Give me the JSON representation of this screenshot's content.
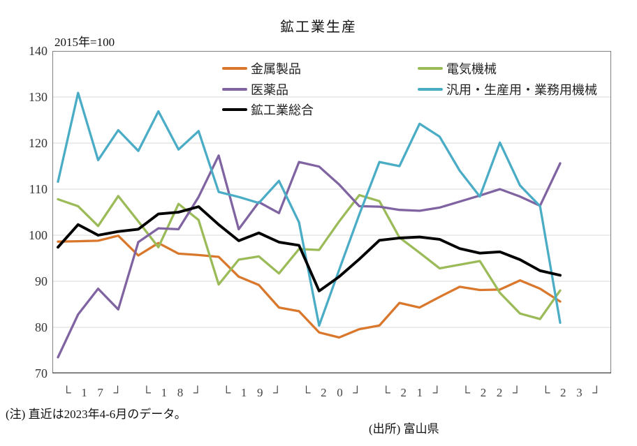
{
  "title": "鉱工業生産",
  "axis_note": "2015年=100",
  "footnote": "(注) 直近は2023年4-6月のデータ。",
  "source": "(出所) 富山県",
  "legend": {
    "columns": [
      [
        0,
        2,
        4
      ],
      [
        1,
        3
      ]
    ]
  },
  "chart_data": {
    "type": "line",
    "title": "鉱工業生産",
    "index_note": "2015年=100",
    "xlabel": "",
    "ylabel": "2015年=100",
    "ylim": [
      70,
      140
    ],
    "ytick_step": 10,
    "yticks": [
      140,
      130,
      120,
      110,
      100,
      90,
      80,
      70
    ],
    "grid": "horizontal",
    "legend_position": "inside-top, two columns",
    "x_years": [
      "17",
      "18",
      "19",
      "20",
      "21",
      "22",
      "23"
    ],
    "x_bracket_open": "└",
    "x_bracket_close": "┘",
    "quarters_per_year": 4,
    "points_plotted": 26,
    "x_note": "quarterly points from 2017Q1 to 2023Q2 (26 points on a 28-slot axis)",
    "series": [
      {
        "name": "金属製品",
        "color": "#D9782D",
        "values": [
          98.6,
          98.7,
          98.8,
          99.9,
          95.6,
          98.3,
          96.0,
          95.7,
          95.3,
          91.0,
          89.2,
          84.3,
          83.5,
          78.9,
          77.8,
          79.6,
          80.4,
          85.3,
          84.3,
          86.6,
          88.8,
          88.1,
          88.2,
          90.2,
          88.4,
          85.6
        ]
      },
      {
        "name": "電気機械",
        "color": "#9BBB59",
        "values": [
          107.8,
          106.3,
          102.0,
          108.5,
          103.0,
          97.4,
          106.8,
          103.3,
          89.3,
          94.7,
          95.4,
          91.7,
          97.0,
          96.8,
          103.0,
          108.7,
          107.4,
          99.5,
          96.2,
          92.8,
          93.6,
          94.4,
          87.5,
          83.0,
          81.8,
          88.0
        ]
      },
      {
        "name": "医薬品",
        "color": "#8064A2",
        "values": [
          73.5,
          82.8,
          88.4,
          83.9,
          98.5,
          101.5,
          101.3,
          108.3,
          117.3,
          101.3,
          107.2,
          104.8,
          115.9,
          114.9,
          111.0,
          106.3,
          106.2,
          105.5,
          105.3,
          106.0,
          107.3,
          108.6,
          110.0,
          108.4,
          106.4,
          115.6
        ]
      },
      {
        "name": "汎用・生産用・業務用機械",
        "color": "#4BACC6",
        "values": [
          111.6,
          130.9,
          116.3,
          122.8,
          118.3,
          126.9,
          118.6,
          122.6,
          109.4,
          108.3,
          107.0,
          111.8,
          102.8,
          80.4,
          92.5,
          104.5,
          115.9,
          115.0,
          124.2,
          121.4,
          114.0,
          108.4,
          120.1,
          110.8,
          106.3,
          81.0
        ]
      },
      {
        "name": "鉱工業総合",
        "color": "#000000",
        "values": [
          97.4,
          102.3,
          100.0,
          100.8,
          101.3,
          104.6,
          105.0,
          106.2,
          102.3,
          98.8,
          100.5,
          98.5,
          97.8,
          87.9,
          91.0,
          94.8,
          98.9,
          99.4,
          99.6,
          99.1,
          97.1,
          96.1,
          96.4,
          94.7,
          92.3,
          91.3
        ]
      }
    ],
    "colors": {
      "grid": "#D9D9D9",
      "frame": "#808080",
      "axis": "#595959"
    }
  }
}
